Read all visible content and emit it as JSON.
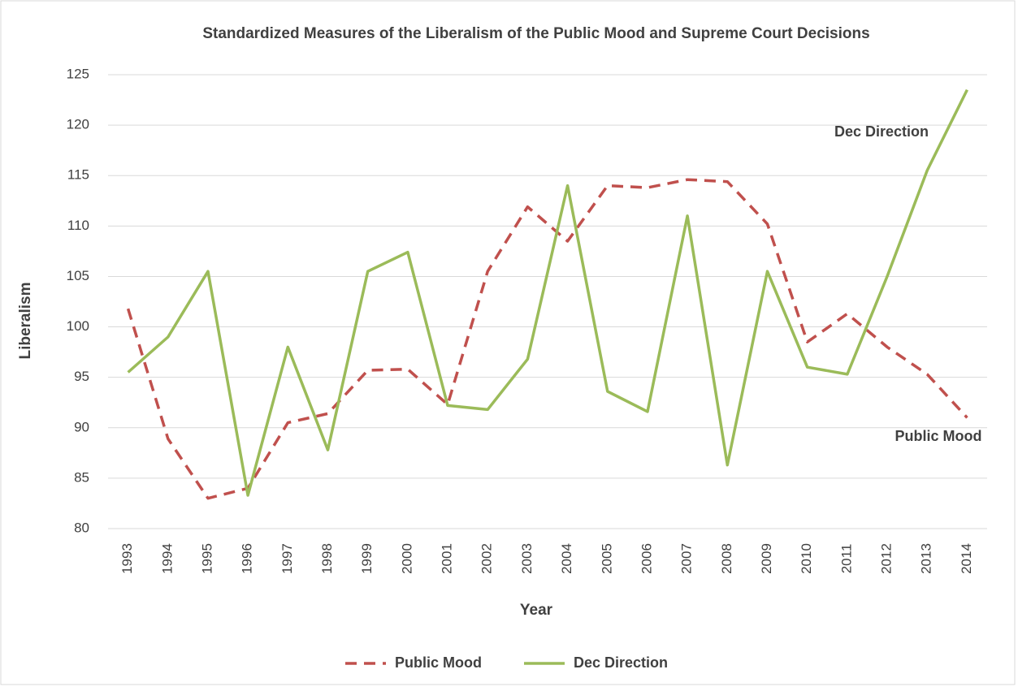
{
  "chart_data": {
    "type": "line",
    "title": "Standardized Measures of the Liberalism of the Public Mood and Supreme Court Decisions",
    "x_label": "Year",
    "y_label": "Liberalism",
    "categories": [
      "1993",
      "1994",
      "1995",
      "1996",
      "1997",
      "1998",
      "1999",
      "2000",
      "2001",
      "2002",
      "2003",
      "2004",
      "2005",
      "2006",
      "2007",
      "2008",
      "2009",
      "2010",
      "2011",
      "2012",
      "2013",
      "2014"
    ],
    "series": [
      {
        "name": "Public Mood",
        "color": "#c0504d",
        "dashed": true,
        "values": [
          101.8,
          88.9,
          83,
          84,
          90.5,
          91.4,
          95.7,
          95.8,
          92.3,
          105.5,
          111.9,
          108.5,
          114,
          113.8,
          114.6,
          114.4,
          110.2,
          98.5,
          101.3,
          98,
          95.3,
          91
        ]
      },
      {
        "name": "Dec Direction",
        "color": "#9bbb59",
        "dashed": false,
        "values": [
          95.5,
          99,
          105.5,
          83.3,
          98,
          87.8,
          105.5,
          107.4,
          92.2,
          91.8,
          96.8,
          114,
          93.6,
          91.6,
          111,
          86.3,
          105.5,
          96,
          95.3,
          105,
          115.5,
          123.5
        ]
      }
    ],
    "annotations": [
      "Dec Direction",
      "Public Mood"
    ],
    "ylim": [
      80,
      125
    ],
    "yticks": [
      80,
      85,
      90,
      95,
      100,
      105,
      110,
      115,
      120,
      125
    ],
    "grid": true,
    "legend": "bottom"
  }
}
